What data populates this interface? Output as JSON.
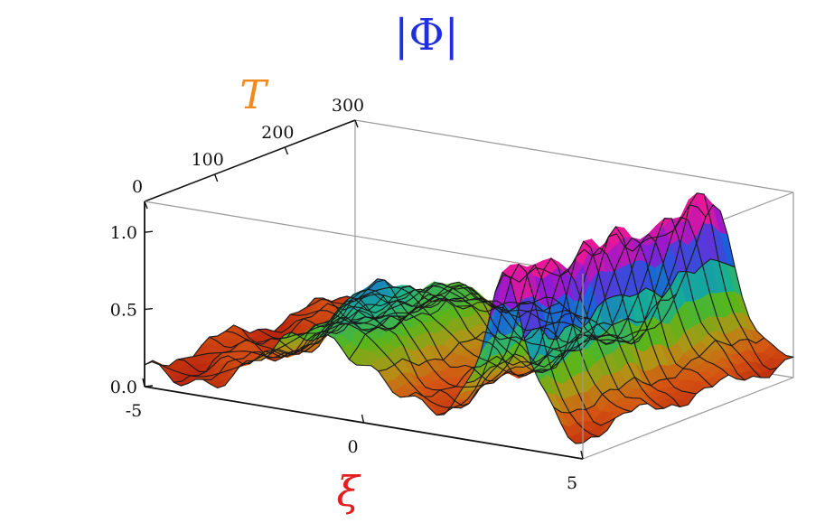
{
  "chart_data": {
    "type": "surface3d",
    "title": "|Φ|",
    "xlabel": "ξ",
    "ylabel": "T",
    "zlabel": "",
    "xlim": [
      -5,
      5
    ],
    "ylim": [
      0,
      300
    ],
    "zlim": [
      0,
      1.2
    ],
    "x_ticks": [
      "-5",
      "0",
      "5"
    ],
    "y_ticks": [
      "0",
      "100",
      "200",
      "300"
    ],
    "z_ticks": [
      "0.0",
      "0.5",
      "1.0"
    ],
    "surface": {
      "description_values": {
        "background_level_left_region": 0.15,
        "green_ridge_center_xi": -1.0,
        "green_ridge_peak": 0.55,
        "main_soliton_center_xi": 3.2,
        "main_soliton_peak": 1.0,
        "main_soliton_width": 0.8
      }
    },
    "colors": {
      "title": "#1f2fe0",
      "T_label": "#f08a1c",
      "xi_label": "#e21f1f"
    }
  }
}
